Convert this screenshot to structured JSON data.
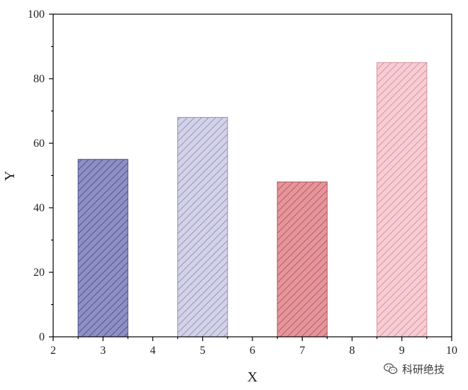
{
  "chart_data": {
    "type": "bar",
    "x": [
      3,
      5,
      7,
      9
    ],
    "values": [
      55,
      68,
      48,
      85
    ],
    "bar_width": 1,
    "bar_colors": [
      "#8e8fc4",
      "#d3d2e8",
      "#e7959a",
      "#f7cdd4"
    ],
    "hatch_colors": [
      "#4d4f86",
      "#8f8fb6",
      "#a95a61",
      "#d78d99"
    ],
    "hatch": "diagonal",
    "title": "",
    "xlabel": "X",
    "ylabel": "Y",
    "xlim": [
      2,
      10
    ],
    "ylim": [
      0,
      100
    ],
    "xticks": [
      2,
      3,
      4,
      5,
      6,
      7,
      8,
      9,
      10
    ],
    "yticks": [
      0,
      20,
      40,
      60,
      80,
      100
    ],
    "grid": false,
    "legend": "none"
  },
  "watermark": {
    "text": "科研绝技",
    "icon": "wechat-icon"
  }
}
